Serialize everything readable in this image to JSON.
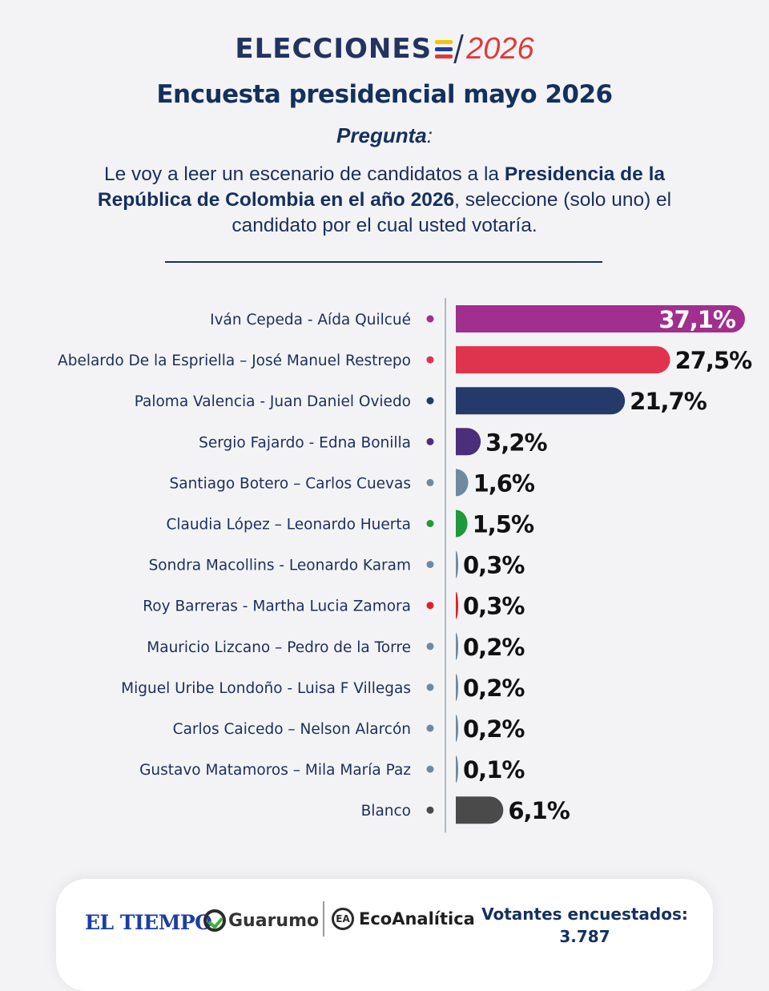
{
  "header": {
    "logo_word": "ELECCIONES",
    "logo_year": "2026",
    "title": "Encuesta presidencial mayo 2026",
    "question_label": "Pregunta",
    "question_label_suffix": ":",
    "question_part1": "Le voy a leer un escenario de candidatos a la ",
    "question_bold": "Presidencia de la República de Colombia en el año 2026",
    "question_part2": ", seleccione (solo uno) el candidato por el cual usted votaría."
  },
  "colors": {
    "navy": "#1b2f5c",
    "flag_yellow": "#f5c400",
    "flag_blue": "#1f3d99",
    "flag_red": "#e03a3a"
  },
  "chart_data": {
    "type": "bar",
    "orientation": "horizontal",
    "title": "Encuesta presidencial mayo 2026",
    "xlabel": "",
    "ylabel": "",
    "grid": false,
    "legend": "none",
    "unit": "%",
    "categories": [
      "Iván Cepeda - Aída Quilcué",
      "Abelardo De la Espriella – José Manuel Restrepo",
      "Paloma Valencia - Juan Daniel Oviedo",
      "Sergio Fajardo - Edna Bonilla",
      "Santiago Botero – Carlos Cuevas",
      "Claudia López – Leonardo Huerta",
      "Sondra Macollins - Leonardo Karam",
      "Roy Barreras - Martha Lucia Zamora",
      "Mauricio Lizcano – Pedro de la Torre",
      "Miguel Uribe Londoño - Luisa F Villegas",
      "Carlos Caicedo – Nelson Alarcón",
      "Gustavo Matamoros – Mila María Paz",
      "Blanco"
    ],
    "values": [
      37.1,
      27.5,
      21.7,
      3.2,
      1.6,
      1.5,
      0.3,
      0.3,
      0.2,
      0.2,
      0.2,
      0.1,
      6.1
    ],
    "value_labels": [
      "37,1%",
      "27,5%",
      "21,7%",
      "3,2%",
      "1,6%",
      "1,5%",
      "0,3%",
      "0,3%",
      "0,2%",
      "0,2%",
      "0,2%",
      "0,1%",
      "6,1%"
    ],
    "bar_colors": [
      "#a12f8e",
      "#e0344e",
      "#243a6a",
      "#4b2e7c",
      "#6f8aa0",
      "#1e9a3a",
      "#6f8aa0",
      "#e01f2a",
      "#6f8aa0",
      "#6f8aa0",
      "#6f8aa0",
      "#6f8aa0",
      "#4a4a4a"
    ],
    "dot_colors": [
      "#a12f8e",
      "#e0344e",
      "#243a6a",
      "#4b2e7c",
      "#6f8aa0",
      "#1e9a3a",
      "#6f8aa0",
      "#e01f2a",
      "#6f8aa0",
      "#6f8aa0",
      "#6f8aa0",
      "#6f8aa0",
      "#4a4a4a"
    ]
  },
  "footer": {
    "brand1": "EL TIEMPO",
    "brand2": "Guarumo",
    "brand3": "EcoAnalítica",
    "brand3_icon": "EA",
    "votes_label": "Votantes encuestados:",
    "votes_value": "3.787"
  }
}
